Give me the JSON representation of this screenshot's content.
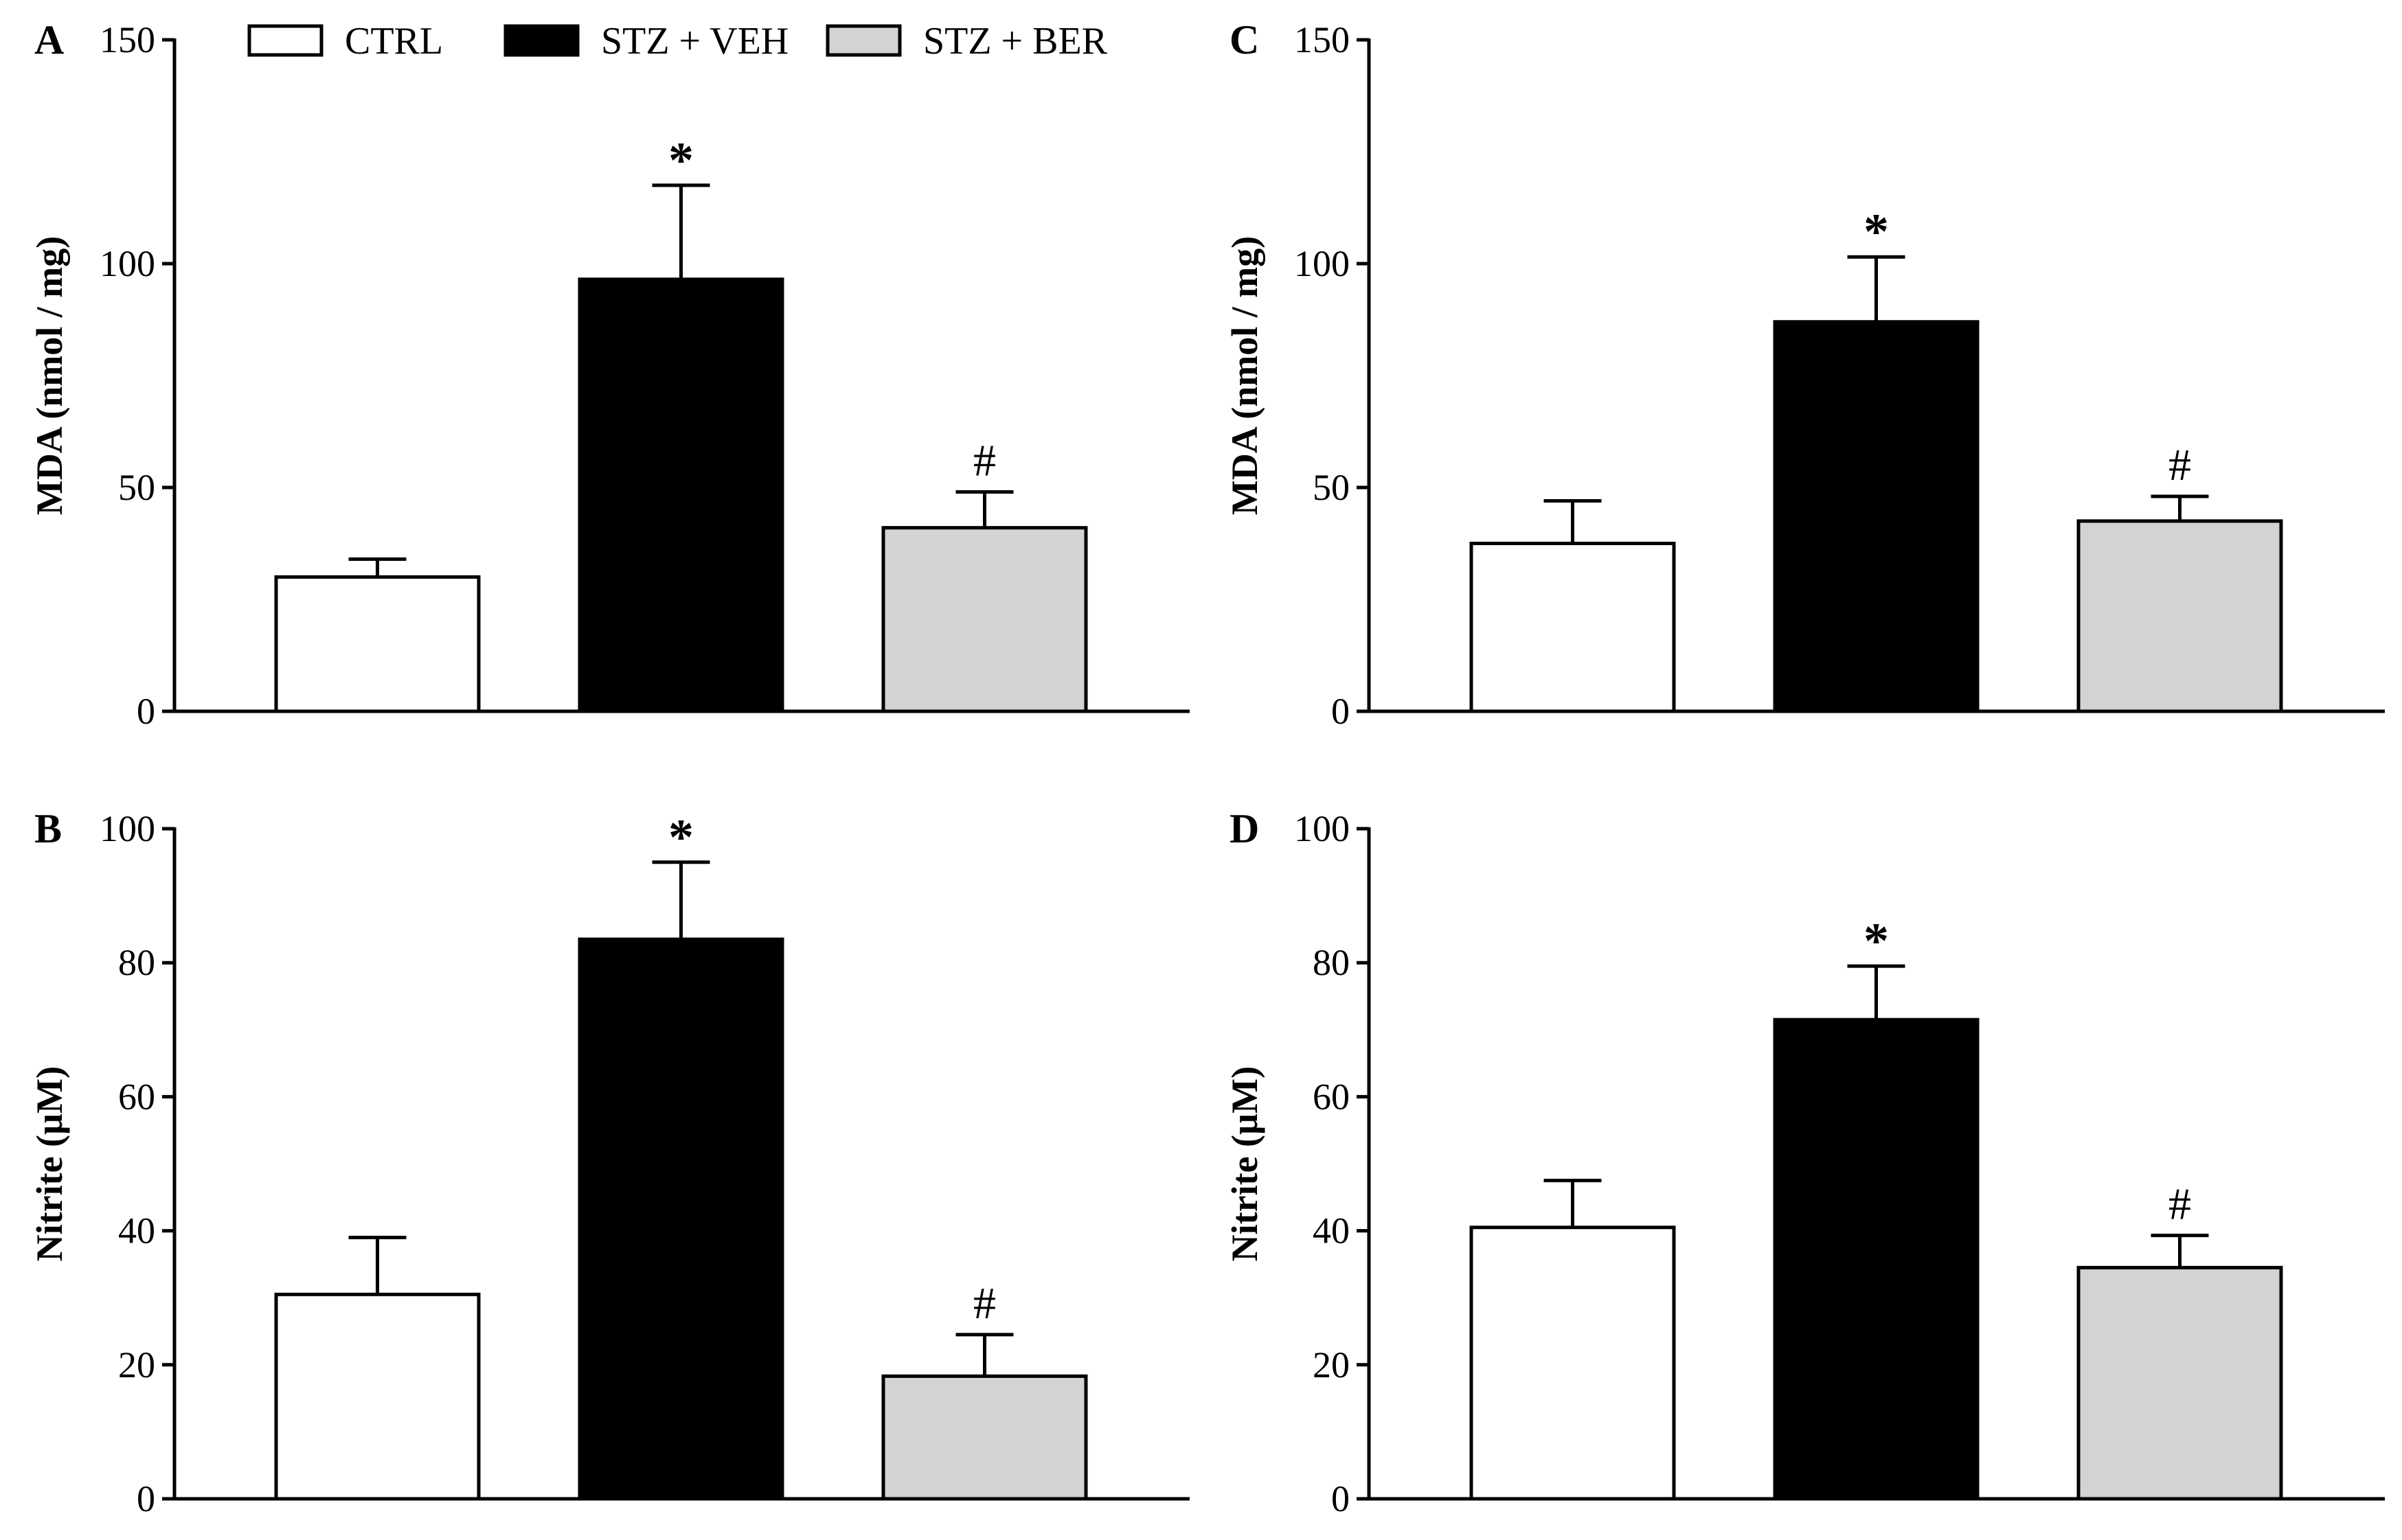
{
  "legend": [
    {
      "label": "CTRL",
      "color": "#ffffff"
    },
    {
      "label": "STZ + VEH",
      "color": "#000000"
    },
    {
      "label": "STZ + BER",
      "color": "#d3d3d3"
    }
  ],
  "chart_data": [
    {
      "panel": "A",
      "type": "bar",
      "ylabel": "MDA  (nmol / mg)",
      "ylim": [
        0,
        150
      ],
      "yticks": [
        0,
        50,
        100,
        150
      ],
      "categories": [
        "CTRL",
        "STZ + VEH",
        "STZ + BER"
      ],
      "values": [
        30,
        96.5,
        41
      ],
      "errors": [
        4,
        21,
        8
      ],
      "annotations": [
        "",
        "*",
        "#"
      ]
    },
    {
      "panel": "B",
      "type": "bar",
      "ylabel": "Nitrite (µM)",
      "ylim": [
        0,
        100
      ],
      "yticks": [
        0,
        20,
        40,
        60,
        80,
        100
      ],
      "categories": [
        "CTRL",
        "STZ + VEH",
        "STZ + BER"
      ],
      "values": [
        30.5,
        83.5,
        18.3
      ],
      "errors": [
        8.5,
        11.5,
        6.2
      ],
      "annotations": [
        "",
        "*",
        "#"
      ]
    },
    {
      "panel": "C",
      "type": "bar",
      "ylabel": "MDA  (nmol / mg)",
      "ylim": [
        0,
        150
      ],
      "yticks": [
        0,
        50,
        100,
        150
      ],
      "categories": [
        "CTRL",
        "STZ + VEH",
        "STZ + BER"
      ],
      "values": [
        37.5,
        87,
        42.5
      ],
      "errors": [
        9.5,
        14.5,
        5.5
      ],
      "annotations": [
        "",
        "*",
        "#"
      ]
    },
    {
      "panel": "D",
      "type": "bar",
      "ylabel": "Nitrite (µM)",
      "ylim": [
        0,
        100
      ],
      "yticks": [
        0,
        20,
        40,
        60,
        80,
        100
      ],
      "categories": [
        "CTRL",
        "STZ + VEH",
        "STZ + BER"
      ],
      "values": [
        40.5,
        71.5,
        34.5
      ],
      "errors": [
        7,
        8,
        4.8
      ],
      "annotations": [
        "",
        "*",
        "#"
      ]
    }
  ]
}
